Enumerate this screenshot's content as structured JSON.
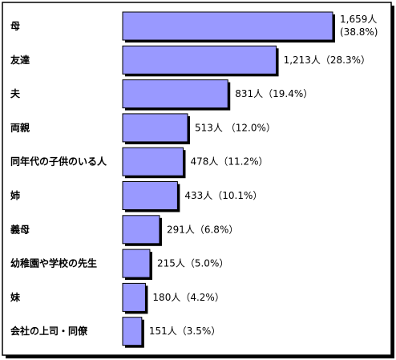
{
  "chart_data": {
    "type": "bar",
    "orientation": "horizontal",
    "title": "",
    "xlabel": "",
    "ylabel": "",
    "grid": false,
    "legend": "none",
    "xlim": [
      0,
      1700
    ],
    "categories": [
      "母",
      "友達",
      "夫",
      "両親",
      "同年代の子供のいる人",
      "姉",
      "義母",
      "幼稚園や学校の先生",
      "妹",
      "会社の上司・同僚"
    ],
    "values": [
      1659,
      1213,
      831,
      513,
      478,
      433,
      291,
      215,
      180,
      151
    ],
    "value_labels": [
      "1,659人",
      "1,213人（28.3%）",
      "831人（19.4%）",
      "513人 （12.0%）",
      "478人（11.2%）",
      "433人（10.1%）",
      "291人（6.8%）",
      "215人（5.0%）",
      "180人（4.2%）",
      "151人（3.5%）"
    ],
    "value_label_line2": [
      "(38.8%)",
      "",
      "",
      "",
      "",
      "",
      "",
      "",
      "",
      ""
    ],
    "percentages": [
      38.8,
      28.3,
      19.4,
      12.0,
      11.2,
      10.1,
      6.8,
      5.0,
      4.2,
      3.5
    ],
    "colors": {
      "bar_fill": "#9999ff",
      "bar_stroke": "#000000",
      "bar_shadow": "#000000",
      "frame": "#000000",
      "frame_shadow": "#000000"
    }
  }
}
